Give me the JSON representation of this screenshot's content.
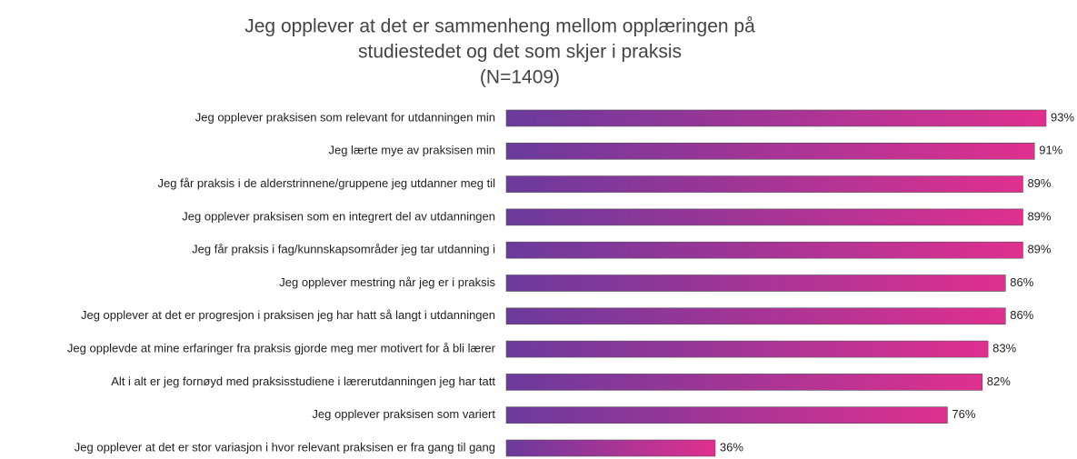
{
  "chart_data": {
    "type": "bar",
    "orientation": "horizontal",
    "title": [
      "Jeg opplever at det er sammenheng mellom opplæringen på",
      "studiestedet og det som skjer i praksis",
      "(N=1409)"
    ],
    "categories": [
      "Jeg opplever praksisen som relevant for utdanningen min",
      "Jeg lærte mye av praksisen min",
      "Jeg får praksis i de alderstrinnene/gruppene jeg utdanner meg til",
      "Jeg opplever praksisen som en integrert del av utdanningen",
      "Jeg får praksis i fag/kunnskapsområder jeg tar utdanning i",
      "Jeg opplever mestring når jeg er i praksis",
      "Jeg opplever at det er progresjon i praksisen jeg har hatt så langt i utdanningen",
      "Jeg opplevde at mine erfaringer fra praksis gjorde meg mer motivert for å bli lærer",
      "Alt i alt er jeg fornøyd med praksisstudiene i lærerutdanningen jeg har tatt",
      "Jeg opplever praksisen som variert",
      "Jeg opplever at det er stor variasjon i hvor relevant praksisen er fra gang til gang"
    ],
    "values": [
      93,
      91,
      89,
      89,
      89,
      86,
      86,
      83,
      82,
      76,
      36
    ],
    "value_labels": [
      "93%",
      "91%",
      "89%",
      "89%",
      "89%",
      "86%",
      "86%",
      "83%",
      "82%",
      "76%",
      "36%"
    ],
    "color": [
      "#6a3a9c",
      "#e0308f"
    ]
  }
}
